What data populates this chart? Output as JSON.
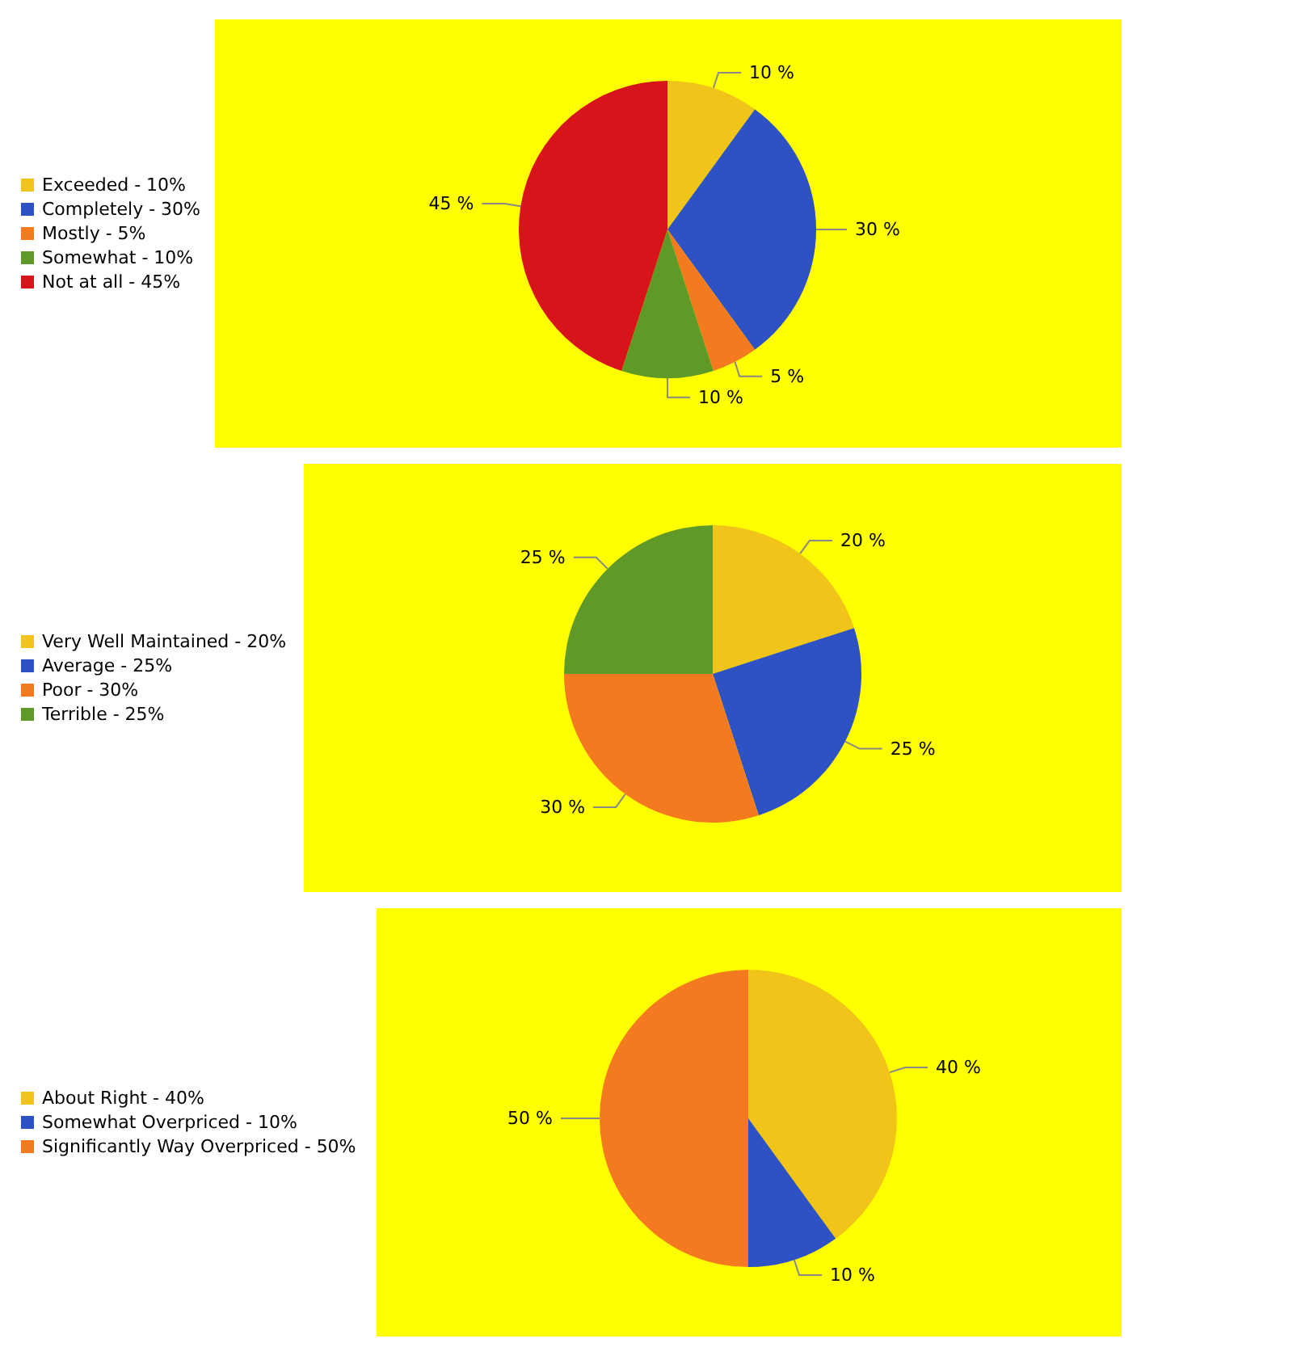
{
  "chart_data": [
    {
      "type": "pie",
      "categories": [
        "Exceeded - 10%",
        "Completely - 30%",
        "Mostly - 5%",
        "Somewhat - 10%",
        "Not at all - 45%"
      ],
      "values": [
        10,
        30,
        5,
        10,
        45
      ],
      "colors": [
        "#f0c419",
        "#2e51c4",
        "#f47a20",
        "#5f9a28",
        "#d8141b"
      ],
      "value_labels": [
        "10 %",
        "30 %",
        "5 %",
        "10 %",
        "45 %"
      ],
      "legend": "left"
    },
    {
      "type": "pie",
      "categories": [
        "Very Well Maintained - 20%",
        "Average - 25%",
        "Poor - 30%",
        "Terrible - 25%"
      ],
      "values": [
        20,
        25,
        30,
        25
      ],
      "colors": [
        "#f0c419",
        "#2e51c4",
        "#f47a20",
        "#5f9a28"
      ],
      "value_labels": [
        "20 %",
        "25 %",
        "30 %",
        "25 %"
      ],
      "legend": "left"
    },
    {
      "type": "pie",
      "categories": [
        "About Right - 40%",
        "Somewhat Overpriced - 10%",
        "Significantly Way Overpriced - 50%"
      ],
      "values": [
        40,
        10,
        50
      ],
      "colors": [
        "#f0c419",
        "#2e51c4",
        "#f47a20"
      ],
      "value_labels": [
        "40 %",
        "10 %",
        "50 %"
      ],
      "legend": "left"
    }
  ]
}
